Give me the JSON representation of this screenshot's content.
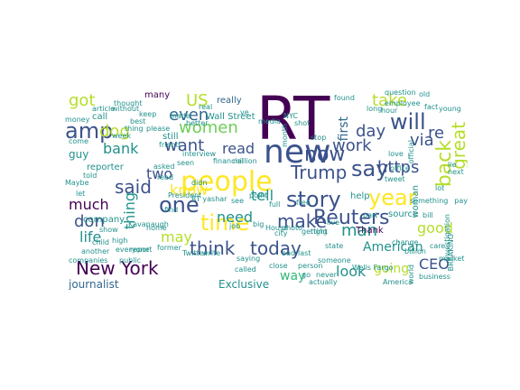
{
  "wordcloud": {
    "colors": {
      "dark_purple": "#440154",
      "indigo": "#3b528b",
      "blue": "#31688e",
      "teal": "#21918c",
      "green": "#35b779",
      "light_green": "#6ece58",
      "yellow_green": "#b5de2b",
      "yellow": "#fde725"
    },
    "words": [
      "RT",
      "new",
      "people",
      "say",
      "amp",
      "will",
      "Reuters",
      "story",
      "New York",
      "one",
      "time",
      "year",
      "said",
      "Trump",
      "make",
      "think",
      "today",
      "now",
      "want",
      "women",
      "dog",
      "even",
      "got",
      "US",
      "take",
      "day",
      "via",
      "https",
      "back",
      "great",
      "re",
      "work",
      "first",
      "bank",
      "read",
      "two",
      "know",
      "tell",
      "much",
      "don",
      "thing",
      "need",
      "may",
      "man",
      "good",
      "American",
      "look",
      "CEO",
      "life",
      "journalist",
      "Exclusive",
      "way",
      "going",
      "guy",
      "reporter",
      "company",
      "really",
      "many",
      "thought",
      "call",
      "best",
      "still",
      "made",
      "Wall Street",
      "better",
      "Wells Fargo",
      "NYC",
      "stop",
      "employee",
      "question",
      "woman",
      "source",
      "help",
      "Thank",
      "part",
      "business",
      "America",
      "billion",
      "actually",
      "someone",
      "person",
      "photo",
      "getting",
      "called",
      "see",
      "friend",
      "million",
      "home",
      "President",
      "Twitter",
      "write",
      "job",
      "big",
      "Maybe",
      "told",
      "let",
      "money",
      "come",
      "find",
      "report",
      "next",
      "lot",
      "pay",
      "lie",
      "hour",
      "found",
      "long",
      "world",
      "something",
      "office",
      "tweet",
      "love",
      "state",
      "right",
      "live",
      "another",
      "House",
      "financial",
      "interview",
      "seen",
      "asked",
      "saying",
      "companies",
      "BREAKING",
      "never",
      "go",
      "without",
      "article",
      "show",
      "high",
      "everyone",
      "former",
      "Kavanaugh",
      "young",
      "ve",
      "RT yashar",
      "official",
      "fact",
      "point",
      "month",
      "shot",
      "real",
      "week",
      "read",
      "didn",
      "please",
      "thing",
      "keep",
      "child",
      "public",
      "bad",
      "media",
      "last",
      "old",
      "investigation",
      "bill",
      "care",
      "market",
      "change",
      "city",
      "free",
      "full",
      "close"
    ]
  }
}
